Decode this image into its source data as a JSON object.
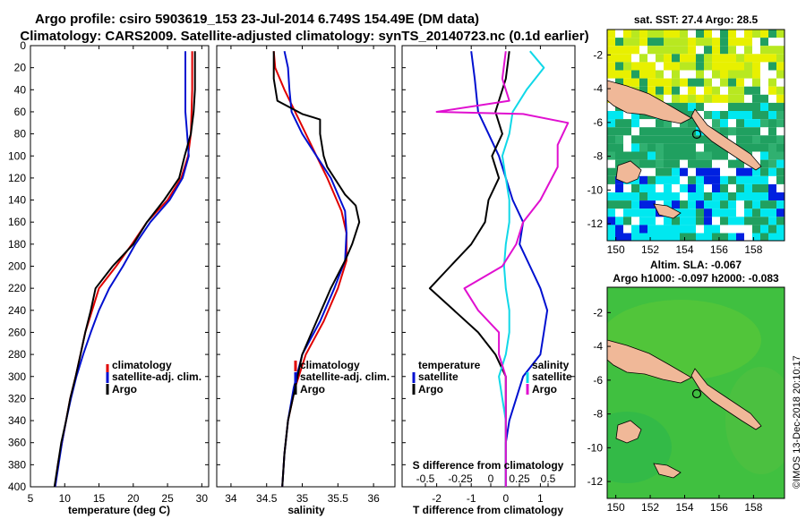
{
  "title": {
    "line1": "Argo profile: csiro 5903619_153 23-Jul-2014 6.749S 154.49E (DM data)",
    "line2": "Climatology: CARS2009. Satellite-adjusted climatology: synTS_20140723.nc (0.1d earlier)"
  },
  "credit": "©IMOS 13-Dec-2018 20:10:17",
  "colors": {
    "climatology": "#e00000",
    "satellite": "#0010d0",
    "argo": "#000000",
    "sat_salinity": "#10d8e8",
    "clim_salinity": "#e010d0",
    "land": "#f0b898",
    "sst_hi": "#e8f000",
    "sst_mid": "#20a060",
    "sst_lo": "#00e8f0",
    "sla": "#40c040"
  },
  "depth_axis": {
    "ylim": [
      0,
      400
    ],
    "ticks": [
      "0",
      "20",
      "40",
      "60",
      "80",
      "100",
      "120",
      "140",
      "160",
      "180",
      "200",
      "220",
      "240",
      "260",
      "280",
      "300",
      "320",
      "340",
      "360",
      "380",
      "400"
    ]
  },
  "chart_data": [
    {
      "type": "line",
      "id": "temperature",
      "xlabel": "temperature (deg C)",
      "xlim": [
        5,
        31
      ],
      "xticks": [
        5,
        10,
        15,
        20,
        25,
        30
      ],
      "xtick_labels": [
        "5",
        "10",
        "15",
        "20",
        "25",
        "30"
      ],
      "legend": [
        "climatology",
        "satellite-adj. clim.",
        "Argo"
      ],
      "series": [
        {
          "name": "climatology",
          "color": "#e00000",
          "points": [
            [
              28.6,
              5
            ],
            [
              28.6,
              40
            ],
            [
              28.5,
              60
            ],
            [
              28.4,
              80
            ],
            [
              28.0,
              100
            ],
            [
              27.0,
              120
            ],
            [
              25.0,
              140
            ],
            [
              22.0,
              160
            ],
            [
              19.8,
              180
            ],
            [
              17.5,
              200
            ],
            [
              15.0,
              220
            ],
            [
              14.0,
              240
            ],
            [
              13.0,
              260
            ],
            [
              12.3,
              280
            ],
            [
              11.6,
              300
            ],
            [
              10.8,
              320
            ],
            [
              10.2,
              340
            ],
            [
              9.6,
              360
            ],
            [
              9.0,
              380
            ],
            [
              8.6,
              400
            ]
          ]
        },
        {
          "name": "satellite-adj. clim.",
          "color": "#0010d0",
          "points": [
            [
              27.6,
              5
            ],
            [
              27.6,
              60
            ],
            [
              27.8,
              75
            ],
            [
              28.1,
              100
            ],
            [
              27.2,
              120
            ],
            [
              25.3,
              140
            ],
            [
              22.5,
              160
            ],
            [
              20.3,
              180
            ],
            [
              18.5,
              200
            ],
            [
              16.5,
              220
            ],
            [
              15.0,
              240
            ],
            [
              13.8,
              260
            ],
            [
              12.7,
              280
            ],
            [
              11.7,
              300
            ],
            [
              10.9,
              320
            ],
            [
              10.2,
              340
            ],
            [
              9.6,
              360
            ],
            [
              9.1,
              380
            ],
            [
              8.6,
              400
            ]
          ]
        },
        {
          "name": "Argo",
          "color": "#000000",
          "points": [
            [
              29.0,
              5
            ],
            [
              29.0,
              40
            ],
            [
              28.8,
              60
            ],
            [
              28.5,
              75
            ],
            [
              28.4,
              80
            ],
            [
              27.5,
              100
            ],
            [
              26.7,
              120
            ],
            [
              24.5,
              140
            ],
            [
              22.0,
              160
            ],
            [
              20.0,
              180
            ],
            [
              17.0,
              200
            ],
            [
              14.5,
              220
            ],
            [
              13.8,
              240
            ],
            [
              13.0,
              260
            ],
            [
              12.3,
              280
            ],
            [
              11.6,
              300
            ],
            [
              10.8,
              320
            ],
            [
              10.2,
              340
            ],
            [
              9.5,
              360
            ],
            [
              9.0,
              380
            ],
            [
              8.5,
              400
            ]
          ]
        }
      ]
    },
    {
      "type": "line",
      "id": "salinity",
      "xlabel": "salinity",
      "xlim": [
        33.8,
        36.3
      ],
      "xticks": [
        34,
        34.5,
        35,
        35.5,
        36
      ],
      "xtick_labels": [
        "34",
        "34.5",
        "35",
        "35.5",
        "36"
      ],
      "legend": [
        "climatology",
        "satellite-adj. clim.",
        "Argo"
      ],
      "series": [
        {
          "name": "climatology",
          "color": "#e00000",
          "points": [
            [
              34.6,
              5
            ],
            [
              34.62,
              20
            ],
            [
              34.75,
              40
            ],
            [
              34.9,
              60
            ],
            [
              35.05,
              80
            ],
            [
              35.2,
              100
            ],
            [
              35.35,
              120
            ],
            [
              35.55,
              150
            ],
            [
              35.62,
              170
            ],
            [
              35.62,
              195
            ],
            [
              35.5,
              220
            ],
            [
              35.3,
              250
            ],
            [
              35.05,
              280
            ],
            [
              34.9,
              310
            ],
            [
              34.8,
              340
            ],
            [
              34.75,
              370
            ],
            [
              34.72,
              400
            ]
          ]
        },
        {
          "name": "satellite-adj. clim.",
          "color": "#0010d0",
          "points": [
            [
              34.75,
              5
            ],
            [
              34.8,
              20
            ],
            [
              34.82,
              40
            ],
            [
              34.85,
              60
            ],
            [
              35.0,
              80
            ],
            [
              35.2,
              100
            ],
            [
              35.4,
              120
            ],
            [
              35.6,
              150
            ],
            [
              35.62,
              170
            ],
            [
              35.6,
              195
            ],
            [
              35.45,
              220
            ],
            [
              35.25,
              250
            ],
            [
              35.0,
              280
            ],
            [
              34.88,
              310
            ],
            [
              34.8,
              340
            ],
            [
              34.75,
              370
            ],
            [
              34.72,
              400
            ]
          ]
        },
        {
          "name": "Argo",
          "color": "#000000",
          "points": [
            [
              34.6,
              5
            ],
            [
              34.6,
              30
            ],
            [
              34.65,
              50
            ],
            [
              35.0,
              62
            ],
            [
              35.15,
              65
            ],
            [
              35.25,
              67
            ],
            [
              35.25,
              80
            ],
            [
              35.3,
              100
            ],
            [
              35.35,
              110
            ],
            [
              35.6,
              135
            ],
            [
              35.75,
              145
            ],
            [
              35.8,
              160
            ],
            [
              35.7,
              180
            ],
            [
              35.6,
              195
            ],
            [
              35.4,
              220
            ],
            [
              35.2,
              250
            ],
            [
              35.0,
              280
            ],
            [
              34.9,
              310
            ],
            [
              34.8,
              340
            ],
            [
              34.75,
              370
            ],
            [
              34.72,
              400
            ]
          ]
        }
      ]
    },
    {
      "type": "line",
      "id": "differences",
      "xlabel": "T difference from climatology",
      "xlim": [
        -3,
        2
      ],
      "xticks": [
        -2,
        -1,
        0,
        1
      ],
      "xtick_labels": [
        "-2",
        "-1",
        "0",
        "1"
      ],
      "x2label": "S difference from climatology",
      "x2ticks": [
        "-0.5",
        "-0.25",
        "0",
        "0.25",
        "0.5"
      ],
      "legend_left_title": "temperature",
      "legend_left": [
        "satellite",
        "Argo"
      ],
      "legend_right_title": "salinity",
      "legend_right": [
        "satellite",
        "Argo"
      ],
      "series": [
        {
          "name": "temperature satellite",
          "color": "#0010d0",
          "points": [
            [
              -1.0,
              5
            ],
            [
              -0.9,
              30
            ],
            [
              -0.8,
              60
            ],
            [
              -0.5,
              80
            ],
            [
              -0.2,
              100
            ],
            [
              0.0,
              120
            ],
            [
              0.2,
              140
            ],
            [
              0.5,
              160
            ],
            [
              0.4,
              180
            ],
            [
              0.7,
              200
            ],
            [
              1.0,
              220
            ],
            [
              1.2,
              240
            ],
            [
              1.1,
              260
            ],
            [
              1.0,
              280
            ],
            [
              0.5,
              300
            ],
            [
              0.3,
              320
            ],
            [
              0.1,
              340
            ],
            [
              0.0,
              360
            ],
            [
              0.0,
              400
            ]
          ]
        },
        {
          "name": "temperature Argo",
          "color": "#000000",
          "points": [
            [
              0.1,
              5
            ],
            [
              0.0,
              30
            ],
            [
              -0.3,
              60
            ],
            [
              -0.1,
              80
            ],
            [
              -0.4,
              100
            ],
            [
              -0.2,
              120
            ],
            [
              -0.5,
              140
            ],
            [
              -0.6,
              160
            ],
            [
              -1.0,
              180
            ],
            [
              -1.6,
              200
            ],
            [
              -2.2,
              220
            ],
            [
              -1.5,
              240
            ],
            [
              -0.8,
              260
            ],
            [
              -0.3,
              280
            ],
            [
              0.0,
              300
            ],
            [
              0.0,
              320
            ],
            [
              0.0,
              340
            ],
            [
              0.0,
              360
            ],
            [
              0.0,
              400
            ]
          ]
        },
        {
          "name": "salinity satellite",
          "color": "#10d8e8",
          "points": [
            [
              0.7,
              5
            ],
            [
              1.1,
              20
            ],
            [
              0.6,
              40
            ],
            [
              0.2,
              60
            ],
            [
              0.1,
              80
            ],
            [
              -0.1,
              100
            ],
            [
              0.0,
              120
            ],
            [
              0.1,
              140
            ],
            [
              0.1,
              160
            ],
            [
              0.0,
              180
            ],
            [
              -0.05,
              200
            ],
            [
              0.0,
              220
            ],
            [
              0.1,
              240
            ],
            [
              0.1,
              260
            ],
            [
              0.0,
              280
            ],
            [
              -0.2,
              300
            ],
            [
              -0.1,
              320
            ],
            [
              0.0,
              340
            ],
            [
              0.0,
              360
            ],
            [
              0.0,
              400
            ]
          ]
        },
        {
          "name": "salinity Argo",
          "color": "#e010d0",
          "points": [
            [
              0.0,
              5
            ],
            [
              -0.1,
              30
            ],
            [
              0.1,
              50
            ],
            [
              -2.0,
              60
            ],
            [
              0.5,
              62
            ],
            [
              1.8,
              70
            ],
            [
              1.5,
              90
            ],
            [
              1.5,
              110
            ],
            [
              1.0,
              140
            ],
            [
              0.5,
              160
            ],
            [
              0.3,
              180
            ],
            [
              -0.1,
              200
            ],
            [
              -1.2,
              220
            ],
            [
              -0.8,
              240
            ],
            [
              -0.2,
              260
            ],
            [
              -0.2,
              280
            ],
            [
              0.0,
              300
            ],
            [
              0.0,
              320
            ],
            [
              0.0,
              340
            ],
            [
              0.0,
              360
            ],
            [
              0.0,
              400
            ]
          ]
        }
      ]
    },
    {
      "type": "heatmap",
      "id": "sst_map",
      "title": "sat. SST: 27.4 Argo: 28.5",
      "xlim": [
        149.5,
        159.8
      ],
      "ylim": [
        -13,
        -0.5
      ],
      "xtick_labels": [
        "150",
        "152",
        "154",
        "156",
        "158"
      ],
      "ytick_labels": [
        "-2",
        "-4",
        "-6",
        "-8",
        "-10",
        "-12"
      ],
      "argo_position": [
        154.49,
        -6.749
      ]
    },
    {
      "type": "heatmap",
      "id": "sla_map",
      "title": "Altim. SLA: -0.067",
      "subtitle": "Argo h1000: -0.097 h2000: -0.083",
      "xlim": [
        149.5,
        159.8
      ],
      "ylim": [
        -13,
        -0.5
      ],
      "xtick_labels": [
        "150",
        "152",
        "154",
        "156",
        "158"
      ],
      "ytick_labels": [
        "-2",
        "-4",
        "-6",
        "-8",
        "-10",
        "-12"
      ],
      "argo_position": [
        154.49,
        -6.749
      ]
    }
  ]
}
